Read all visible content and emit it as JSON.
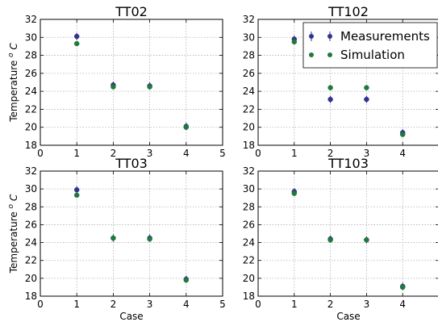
{
  "chart_data": [
    {
      "type": "scatter",
      "title": "TT02",
      "xlabel": "",
      "ylabel": "Temperature $^o C$",
      "xlim": [
        0,
        5
      ],
      "ylim": [
        18,
        32
      ],
      "x_ticks": [
        0,
        1,
        2,
        3,
        4,
        5
      ],
      "y_ticks": [
        18,
        20,
        22,
        24,
        26,
        28,
        30,
        32
      ],
      "grid": true,
      "legend": false,
      "series": [
        {
          "name": "Measurements",
          "color": "#33338f",
          "marker": "circle",
          "x": [
            1,
            2,
            3,
            4
          ],
          "y": [
            30.1,
            24.7,
            24.6,
            20.1
          ]
        },
        {
          "name": "Simulation",
          "color": "#1f7a3a",
          "marker": "circle",
          "x": [
            1,
            2,
            3,
            4
          ],
          "y": [
            29.3,
            24.5,
            24.5,
            20.0
          ]
        }
      ]
    },
    {
      "type": "scatter",
      "title": "TT102",
      "xlabel": "",
      "ylabel": "",
      "xlim": [
        0,
        5
      ],
      "ylim": [
        18,
        32
      ],
      "x_ticks": [
        0,
        1,
        2,
        3,
        4
      ],
      "y_ticks": [
        18,
        20,
        22,
        24,
        26,
        28,
        30,
        32
      ],
      "grid": true,
      "legend": true,
      "legend_position": "top-right",
      "series": [
        {
          "name": "Measurements",
          "color": "#33338f",
          "marker": "circle",
          "x": [
            1,
            2,
            3,
            4
          ],
          "y": [
            29.8,
            23.1,
            23.1,
            19.4
          ]
        },
        {
          "name": "Simulation",
          "color": "#1f7a3a",
          "marker": "circle",
          "x": [
            1,
            2,
            3,
            4
          ],
          "y": [
            29.5,
            24.4,
            24.4,
            19.2
          ]
        }
      ]
    },
    {
      "type": "scatter",
      "title": "TT03",
      "xlabel": "Case",
      "ylabel": "Temperature $^o C$",
      "xlim": [
        0,
        5
      ],
      "ylim": [
        18,
        32
      ],
      "x_ticks": [
        0,
        1,
        2,
        3,
        4,
        5
      ],
      "y_ticks": [
        18,
        20,
        22,
        24,
        26,
        28,
        30,
        32
      ],
      "grid": true,
      "legend": false,
      "series": [
        {
          "name": "Measurements",
          "color": "#33338f",
          "marker": "circle",
          "x": [
            1,
            2,
            3,
            4
          ],
          "y": [
            29.9,
            24.5,
            24.5,
            19.9
          ]
        },
        {
          "name": "Simulation",
          "color": "#1f7a3a",
          "marker": "circle",
          "x": [
            1,
            2,
            3,
            4
          ],
          "y": [
            29.3,
            24.5,
            24.4,
            19.8
          ]
        }
      ]
    },
    {
      "type": "scatter",
      "title": "TT103",
      "xlabel": "Case",
      "ylabel": "",
      "xlim": [
        0,
        5
      ],
      "ylim": [
        18,
        32
      ],
      "x_ticks": [
        0,
        1,
        2,
        3,
        4
      ],
      "y_ticks": [
        18,
        20,
        22,
        24,
        26,
        28,
        30,
        32
      ],
      "grid": true,
      "legend": false,
      "series": [
        {
          "name": "Measurements",
          "color": "#33338f",
          "marker": "circle",
          "x": [
            1,
            2,
            3,
            4
          ],
          "y": [
            29.7,
            24.4,
            24.3,
            19.1
          ]
        },
        {
          "name": "Simulation",
          "color": "#1f7a3a",
          "marker": "circle",
          "x": [
            1,
            2,
            3,
            4
          ],
          "y": [
            29.5,
            24.3,
            24.3,
            19.0
          ]
        }
      ]
    }
  ]
}
